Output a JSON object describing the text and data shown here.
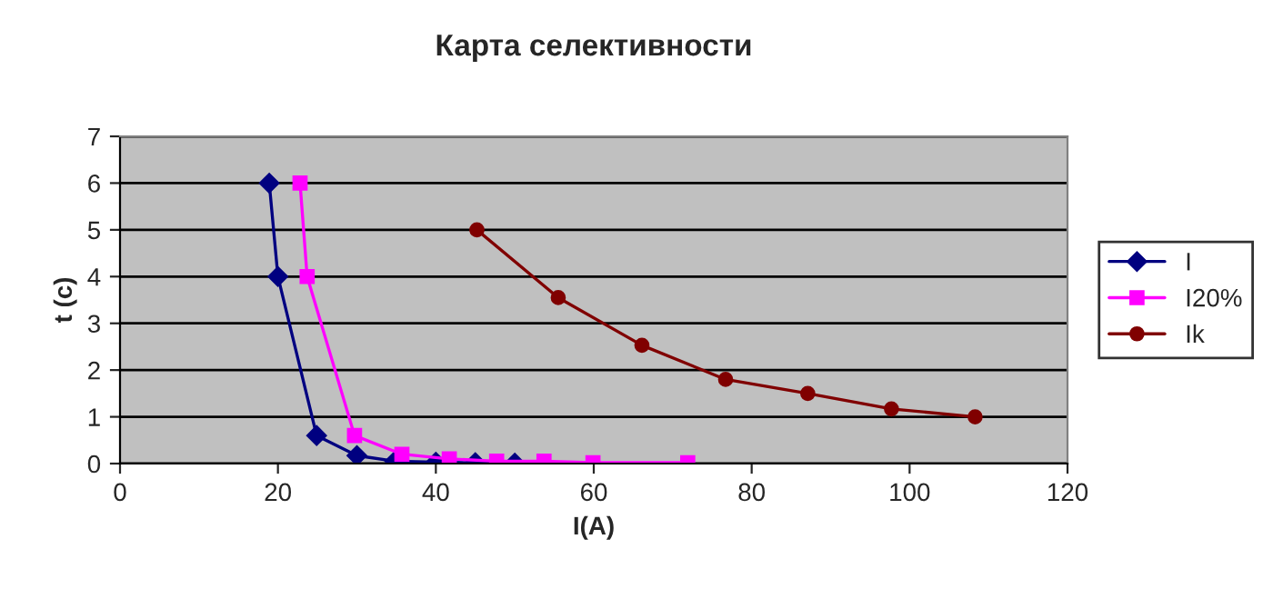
{
  "chart_data": {
    "type": "line",
    "title": "Карта селективности",
    "xlabel": "I(A)",
    "ylabel": "t (c)",
    "xlim": [
      0,
      120
    ],
    "xticks": [
      0,
      20,
      40,
      60,
      80,
      100,
      120
    ],
    "ylim": [
      0,
      7
    ],
    "yticks": [
      0,
      1,
      2,
      3,
      4,
      5,
      6,
      7
    ],
    "grid": "y",
    "legend": "right",
    "line_style": "solid",
    "series": [
      {
        "name": "I",
        "color": "#000080",
        "marker": "diamond",
        "x": [
          18.9,
          20,
          24.9,
          30,
          34.8,
          40,
          45,
          50
        ],
        "values": [
          6,
          4,
          0.6,
          0.17,
          0.05,
          0.03,
          0.02,
          0.01
        ]
      },
      {
        "name": "I20%",
        "color": "#ff00ff",
        "marker": "square",
        "x": [
          22.8,
          23.7,
          29.7,
          35.7,
          41.7,
          47.7,
          53.7,
          59.9,
          71.9
        ],
        "values": [
          6,
          4,
          0.6,
          0.2,
          0.1,
          0.05,
          0.05,
          0.02,
          0.02
        ]
      },
      {
        "name": "Ik",
        "color": "#800000",
        "marker": "circle",
        "x": [
          45.2,
          55.5,
          66.1,
          76.7,
          87.1,
          97.7,
          108.3
        ],
        "values": [
          5,
          3.55,
          2.53,
          1.8,
          1.5,
          1.17,
          1.0
        ]
      }
    ]
  }
}
